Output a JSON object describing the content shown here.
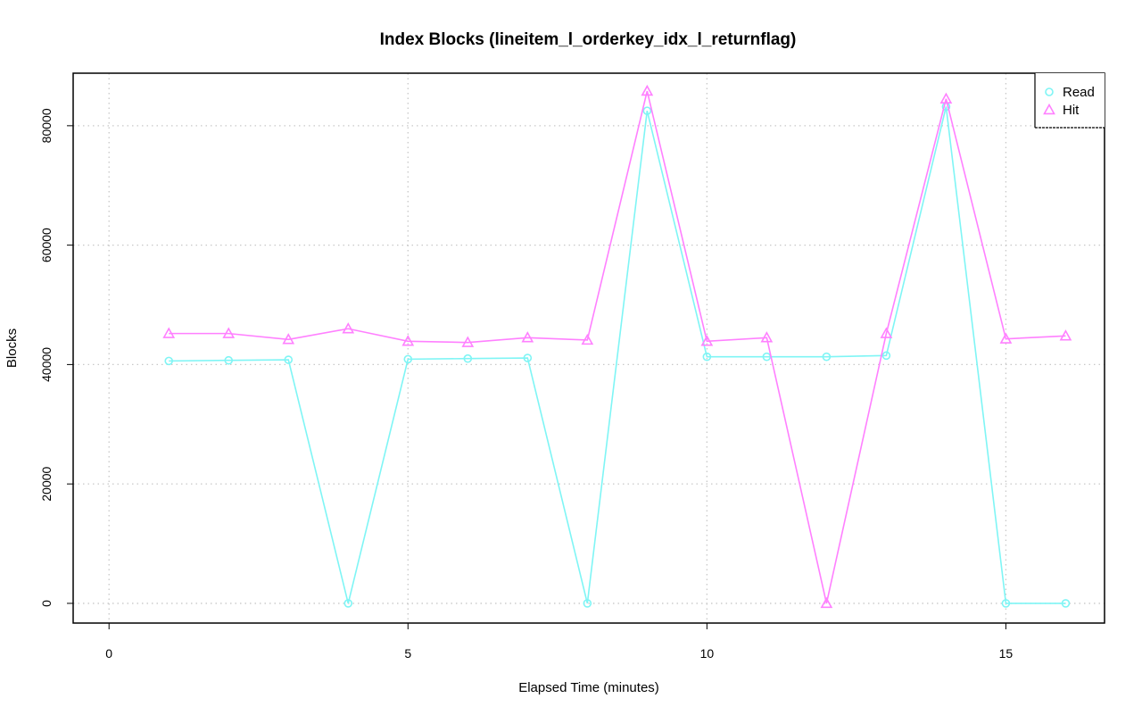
{
  "chart_data": {
    "type": "line",
    "title": "Index Blocks (lineitem_l_orderkey_idx_l_returnflag)",
    "xlabel": "Elapsed Time (minutes)",
    "ylabel": "Blocks",
    "xlim": [
      -0.6,
      16.65
    ],
    "ylim": [
      -3300,
      88800
    ],
    "x_ticks": [
      0,
      5,
      10,
      15
    ],
    "y_ticks": [
      0,
      20000,
      40000,
      60000,
      80000
    ],
    "grid": true,
    "legend_position": "top-right",
    "x": [
      1,
      2,
      3,
      4,
      5,
      6,
      7,
      8,
      9,
      10,
      11,
      12,
      13,
      14,
      15,
      16
    ],
    "series": [
      {
        "name": "Read",
        "color": "#7ff5f5",
        "marker": "circle",
        "values": [
          40600,
          40700,
          40800,
          0,
          40900,
          41000,
          41100,
          0,
          82500,
          41300,
          41300,
          41300,
          41500,
          83200,
          0,
          0
        ]
      },
      {
        "name": "Hit",
        "color": "#ff80ff",
        "marker": "triangle",
        "values": [
          45200,
          45200,
          44200,
          46000,
          43900,
          43700,
          44500,
          44100,
          85800,
          43900,
          44500,
          0,
          45200,
          84500,
          44300,
          44800
        ]
      }
    ]
  }
}
